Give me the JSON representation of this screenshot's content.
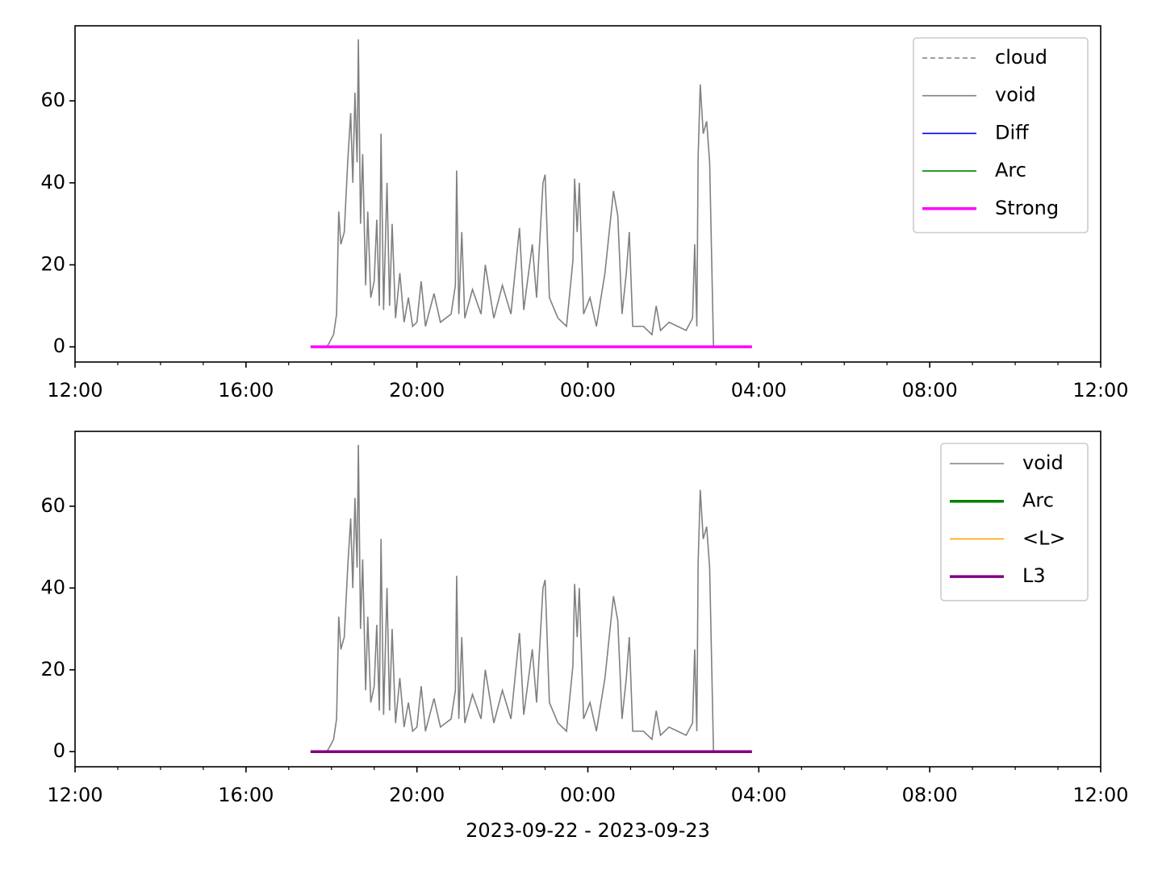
{
  "chart_data": [
    {
      "type": "line",
      "xlim": [
        12,
        36
      ],
      "ylim": [
        -3.7,
        78.3
      ],
      "xticks": [
        {
          "value": 12,
          "label": "12:00"
        },
        {
          "value": 16,
          "label": "16:00"
        },
        {
          "value": 20,
          "label": "20:00"
        },
        {
          "value": 24,
          "label": "00:00"
        },
        {
          "value": 28,
          "label": "04:00"
        },
        {
          "value": 32,
          "label": "08:00"
        },
        {
          "value": 36,
          "label": "12:00"
        }
      ],
      "xminorticks": [
        13,
        14,
        15,
        17,
        18,
        19,
        21,
        22,
        23,
        25,
        26,
        27,
        29,
        30,
        31,
        33,
        34,
        35
      ],
      "yticks": [
        0,
        20,
        40,
        60
      ],
      "legend": "upper right",
      "series": [
        {
          "name": "cloud",
          "color": "#808080",
          "linestyle": "dashed",
          "linewidth": 1.6,
          "x": [],
          "values": []
        },
        {
          "name": "void",
          "color": "#808080",
          "linestyle": "solid",
          "linewidth": 1.6,
          "x": [
            17.89,
            17.95,
            18.05,
            18.12,
            18.17,
            18.22,
            18.3,
            18.38,
            18.45,
            18.5,
            18.55,
            18.6,
            18.63,
            18.68,
            18.73,
            18.8,
            18.85,
            18.92,
            19.0,
            19.06,
            19.12,
            19.16,
            19.22,
            19.3,
            19.36,
            19.42,
            19.5,
            19.6,
            19.7,
            19.8,
            19.9,
            20.0,
            20.1,
            20.2,
            20.4,
            20.55,
            20.8,
            20.9,
            20.93,
            20.98,
            21.05,
            21.12,
            21.3,
            21.5,
            21.6,
            21.8,
            22.0,
            22.2,
            22.4,
            22.5,
            22.7,
            22.8,
            22.95,
            23.0,
            23.1,
            23.3,
            23.5,
            23.65,
            23.69,
            23.75,
            23.8,
            23.9,
            24.05,
            24.2,
            24.4,
            24.6,
            24.7,
            24.8,
            24.9,
            24.97,
            25.05,
            25.3,
            25.5,
            25.6,
            25.7,
            25.9,
            26.1,
            26.3,
            26.45,
            26.5,
            26.55,
            26.58,
            26.63,
            26.7,
            26.78,
            26.85,
            26.9,
            26.94
          ],
          "values": [
            0,
            1,
            3,
            8,
            33,
            25,
            28,
            45,
            57,
            40,
            62,
            45,
            75,
            30,
            47,
            15,
            33,
            12,
            16,
            31,
            10,
            52,
            9,
            40,
            10,
            30,
            7,
            18,
            6,
            12,
            5,
            6,
            16,
            5,
            13,
            6,
            8,
            15,
            43,
            8,
            28,
            7,
            14,
            8,
            20,
            7,
            15,
            8,
            29,
            9,
            25,
            12,
            40,
            42,
            12,
            7,
            5,
            21,
            41,
            28,
            40,
            8,
            12,
            5,
            18,
            38,
            32,
            8,
            18,
            28,
            5,
            5,
            3,
            10,
            4,
            6,
            5,
            4,
            7,
            25,
            5,
            46,
            64,
            52,
            55,
            45,
            20,
            0
          ]
        },
        {
          "name": "Diff",
          "color": "#0000ff",
          "linestyle": "solid",
          "linewidth": 1.6,
          "x": [],
          "values": []
        },
        {
          "name": "Arc",
          "color": "#008000",
          "linestyle": "solid",
          "linewidth": 1.6,
          "x": [],
          "values": []
        },
        {
          "name": "Strong",
          "color": "#ff00ff",
          "linestyle": "solid",
          "linewidth": 3.5,
          "x": [
            17.51,
            27.84
          ],
          "values": [
            0,
            0
          ]
        }
      ]
    },
    {
      "type": "line",
      "xlabel": "2023-09-22 - 2023-09-23",
      "xlim": [
        12,
        36
      ],
      "ylim": [
        -3.7,
        78.3
      ],
      "xticks": [
        {
          "value": 12,
          "label": "12:00"
        },
        {
          "value": 16,
          "label": "16:00"
        },
        {
          "value": 20,
          "label": "20:00"
        },
        {
          "value": 24,
          "label": "00:00"
        },
        {
          "value": 28,
          "label": "04:00"
        },
        {
          "value": 32,
          "label": "08:00"
        },
        {
          "value": 36,
          "label": "12:00"
        }
      ],
      "xminorticks": [
        13,
        14,
        15,
        17,
        18,
        19,
        21,
        22,
        23,
        25,
        26,
        27,
        29,
        30,
        31,
        33,
        34,
        35
      ],
      "yticks": [
        0,
        20,
        40,
        60
      ],
      "legend": "upper right",
      "series": [
        {
          "name": "void",
          "color": "#808080",
          "linestyle": "solid",
          "linewidth": 1.6,
          "x": [
            17.89,
            17.95,
            18.05,
            18.12,
            18.17,
            18.22,
            18.3,
            18.38,
            18.45,
            18.5,
            18.55,
            18.6,
            18.63,
            18.68,
            18.73,
            18.8,
            18.85,
            18.92,
            19.0,
            19.06,
            19.12,
            19.16,
            19.22,
            19.3,
            19.36,
            19.42,
            19.5,
            19.6,
            19.7,
            19.8,
            19.9,
            20.0,
            20.1,
            20.2,
            20.4,
            20.55,
            20.8,
            20.9,
            20.93,
            20.98,
            21.05,
            21.12,
            21.3,
            21.5,
            21.6,
            21.8,
            22.0,
            22.2,
            22.4,
            22.5,
            22.7,
            22.8,
            22.95,
            23.0,
            23.1,
            23.3,
            23.5,
            23.65,
            23.69,
            23.75,
            23.8,
            23.9,
            24.05,
            24.2,
            24.4,
            24.6,
            24.7,
            24.8,
            24.9,
            24.97,
            25.05,
            25.3,
            25.5,
            25.6,
            25.7,
            25.9,
            26.1,
            26.3,
            26.45,
            26.5,
            26.55,
            26.58,
            26.63,
            26.7,
            26.78,
            26.85,
            26.9,
            26.94
          ],
          "values": [
            0,
            1,
            3,
            8,
            33,
            25,
            28,
            45,
            57,
            40,
            62,
            45,
            75,
            30,
            47,
            15,
            33,
            12,
            16,
            31,
            10,
            52,
            9,
            40,
            10,
            30,
            7,
            18,
            6,
            12,
            5,
            6,
            16,
            5,
            13,
            6,
            8,
            15,
            43,
            8,
            28,
            7,
            14,
            8,
            20,
            7,
            15,
            8,
            29,
            9,
            25,
            12,
            40,
            42,
            12,
            7,
            5,
            21,
            41,
            28,
            40,
            8,
            12,
            5,
            18,
            38,
            32,
            8,
            18,
            28,
            5,
            5,
            3,
            10,
            4,
            6,
            5,
            4,
            7,
            25,
            5,
            46,
            64,
            52,
            55,
            45,
            20,
            0
          ]
        },
        {
          "name": "Arc",
          "color": "#008000",
          "linestyle": "solid",
          "linewidth": 3.5,
          "x": [],
          "values": []
        },
        {
          "name": "<L>",
          "color": "#ffa500",
          "linestyle": "solid",
          "linewidth": 1.6,
          "x": [],
          "values": []
        },
        {
          "name": "L3",
          "color": "#800080",
          "linestyle": "solid",
          "linewidth": 3.5,
          "x": [
            17.51,
            27.84
          ],
          "values": [
            0,
            0
          ]
        }
      ]
    }
  ]
}
